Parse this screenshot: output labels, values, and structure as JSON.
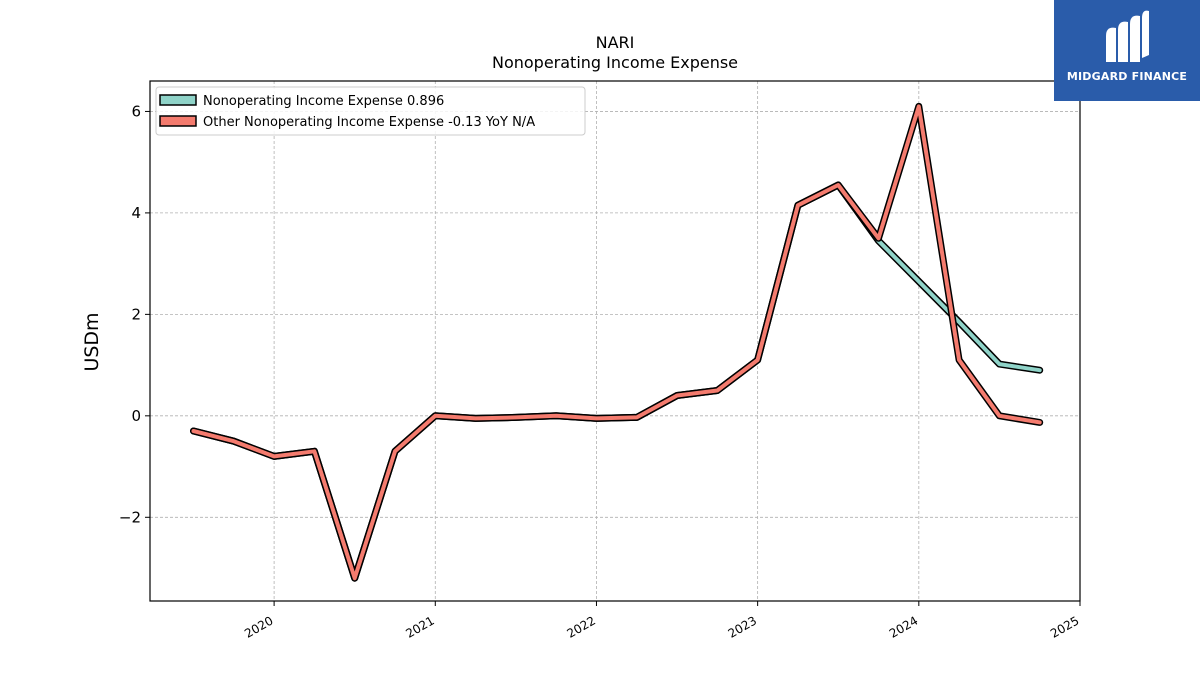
{
  "brand": {
    "name": "MIDGARD FINANCE",
    "bg_color": "#2a5caa",
    "icon": "midgard-logo-icon"
  },
  "chart_data": {
    "type": "line",
    "title": "NARI",
    "subtitle": "Nonoperating Income Expense",
    "xlabel": "",
    "ylabel": "USDm",
    "xlim": [
      2019.23,
      2025.0
    ],
    "ylim": [
      -3.65,
      6.6
    ],
    "x_ticks": [
      "2020",
      "2021",
      "2022",
      "2023",
      "2024",
      "2025"
    ],
    "y_ticks": [
      -2,
      0,
      2,
      4,
      6
    ],
    "y_tick_labels": [
      "−2",
      "0",
      "2",
      "4",
      "6"
    ],
    "grid": true,
    "legend_position": "top-left",
    "x": [
      2019.5,
      2019.75,
      2020.0,
      2020.25,
      2020.5,
      2020.75,
      2021.0,
      2021.25,
      2021.5,
      2021.75,
      2022.0,
      2022.25,
      2022.5,
      2022.75,
      2023.0,
      2023.25,
      2023.5,
      2023.75,
      2024.0,
      2024.25,
      2024.5,
      2024.75
    ],
    "series": [
      {
        "name": "Nonoperating Income Expense",
        "legend_label": "Nonoperating Income Expense  0.896",
        "color": "#8fd3c8",
        "values": [
          -0.3,
          -0.5,
          -0.8,
          -0.7,
          -3.2,
          -0.7,
          0.0,
          -0.05,
          -0.03,
          0.0,
          -0.05,
          -0.03,
          0.4,
          0.5,
          1.1,
          4.15,
          4.55,
          3.45,
          2.65,
          1.85,
          1.02,
          0.9
        ]
      },
      {
        "name": "Other Nonoperating Income Expense",
        "legend_label": "Other Nonoperating Income Expense  -0.13 YoY N/A",
        "color": "#f47b6e",
        "values": [
          -0.3,
          -0.5,
          -0.8,
          -0.7,
          -3.2,
          -0.7,
          0.0,
          -0.05,
          -0.03,
          0.0,
          -0.05,
          -0.03,
          0.4,
          0.5,
          1.1,
          4.15,
          4.55,
          3.5,
          6.1,
          1.1,
          0.0,
          -0.13
        ]
      }
    ]
  }
}
